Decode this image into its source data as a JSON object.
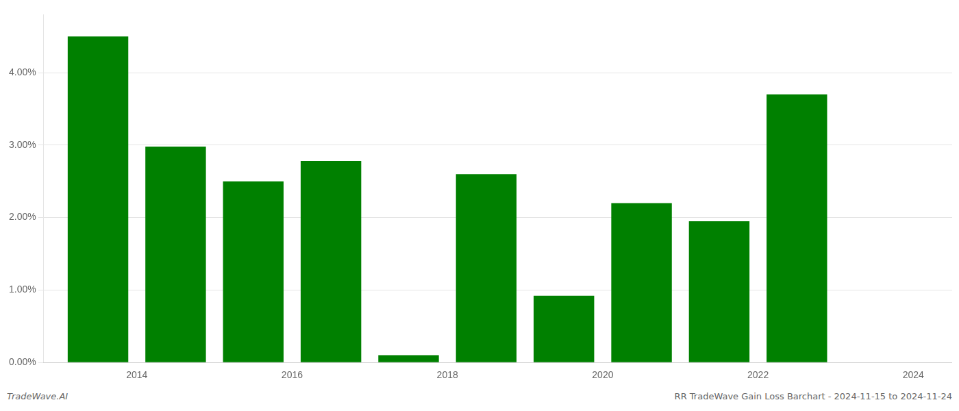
{
  "chart_data": {
    "type": "bar",
    "x": [
      2013.5,
      2014.5,
      2015.5,
      2016.5,
      2017.5,
      2018.5,
      2019.5,
      2020.5,
      2021.5,
      2022.5
    ],
    "values": [
      4.5,
      2.98,
      2.5,
      2.78,
      0.1,
      2.6,
      0.92,
      2.2,
      1.95,
      3.7
    ],
    "color": "#008000",
    "xlim": [
      2012.8,
      2024.5
    ],
    "xticks": [
      2014,
      2016,
      2018,
      2020,
      2022,
      2024
    ],
    "ylim": [
      0,
      4.8
    ],
    "yticks": [
      {
        "value": 0,
        "label": "0.00%"
      },
      {
        "value": 1,
        "label": "1.00%"
      },
      {
        "value": 2,
        "label": "2.00%"
      },
      {
        "value": 3,
        "label": "3.00%"
      },
      {
        "value": 4,
        "label": "4.00%"
      }
    ],
    "grid": "y",
    "annotations": [
      "TradeWave.AI",
      "RR TradeWave Gain Loss Barchart - 2024-11-15 to 2024-11-24"
    ]
  }
}
